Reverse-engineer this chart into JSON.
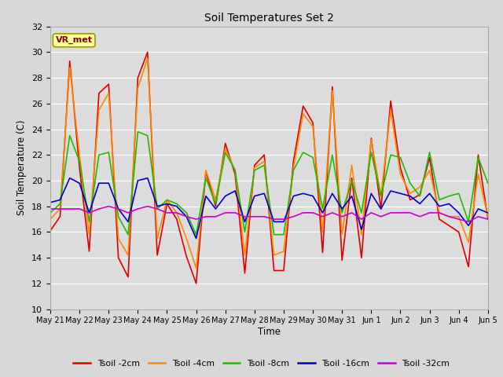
{
  "title": "Soil Temperatures Set 2",
  "xlabel": "Time",
  "ylabel": "Soil Temperature (C)",
  "ylim": [
    10,
    32
  ],
  "yticks": [
    10,
    12,
    14,
    16,
    18,
    20,
    22,
    24,
    26,
    28,
    30,
    32
  ],
  "annotation": "VR_met",
  "bg_color": "#dcdcdc",
  "fig_bg": "#d8d8d8",
  "colors": {
    "t2cm": "#dd0000",
    "t4cm": "#ff8800",
    "t8cm": "#22bb00",
    "t16cm": "#0000cc",
    "t32cm": "#cc00cc"
  },
  "series_labels": [
    "Tsoil -2cm",
    "Tsoil -4cm",
    "Tsoil -8cm",
    "Tsoil -16cm",
    "Tsoil -32cm"
  ],
  "x_labels": [
    "May 21",
    "May 22",
    "May 23",
    "May 24",
    "May 25",
    "May 26",
    "May 27",
    "May 28",
    "May 29",
    "May 30",
    "May 31",
    "Jun 1",
    "Jun 2",
    "Jun 3",
    "Jun 4",
    "Jun 5"
  ],
  "t2cm": [
    16.1,
    17.2,
    29.3,
    21.0,
    14.5,
    26.8,
    27.5,
    14.0,
    12.5,
    28.0,
    30.0,
    14.2,
    18.2,
    17.0,
    14.1,
    12.0,
    20.7,
    18.0,
    22.9,
    20.5,
    12.8,
    21.2,
    22.0,
    13.0,
    13.0,
    21.5,
    25.8,
    24.5,
    14.4,
    27.3,
    13.8,
    20.2,
    14.0,
    23.3,
    17.8,
    26.2,
    21.0,
    18.5,
    18.9,
    21.8,
    17.0,
    16.5,
    16.0,
    13.3,
    22.0,
    17.0
  ],
  "t4cm": [
    17.0,
    17.8,
    28.8,
    22.0,
    15.8,
    25.5,
    26.8,
    15.5,
    14.2,
    27.2,
    29.5,
    15.5,
    18.5,
    17.5,
    15.5,
    13.2,
    20.8,
    18.5,
    22.5,
    20.8,
    14.2,
    21.0,
    21.5,
    14.2,
    14.5,
    21.0,
    25.2,
    24.2,
    16.0,
    27.0,
    15.8,
    21.2,
    15.8,
    23.2,
    18.8,
    25.5,
    20.5,
    19.0,
    19.5,
    20.8,
    17.5,
    17.2,
    17.2,
    15.2,
    20.5,
    17.2
  ],
  "t8cm": [
    17.5,
    18.2,
    23.5,
    21.5,
    16.8,
    22.0,
    22.2,
    17.2,
    15.8,
    23.8,
    23.5,
    17.8,
    18.5,
    18.2,
    17.5,
    15.8,
    20.2,
    18.2,
    22.2,
    20.8,
    16.0,
    20.8,
    21.2,
    15.8,
    15.8,
    20.8,
    22.2,
    21.8,
    17.8,
    22.0,
    17.5,
    20.0,
    17.5,
    22.2,
    18.8,
    22.0,
    21.8,
    19.8,
    18.8,
    22.2,
    18.5,
    18.8,
    19.0,
    16.8,
    21.8,
    19.8
  ],
  "t16cm": [
    18.3,
    18.5,
    20.2,
    19.8,
    17.5,
    19.8,
    19.8,
    17.8,
    16.8,
    20.0,
    20.2,
    18.0,
    18.2,
    18.0,
    17.2,
    15.5,
    18.8,
    17.8,
    18.8,
    19.2,
    16.8,
    18.8,
    19.0,
    16.8,
    16.8,
    18.8,
    19.0,
    18.8,
    17.5,
    19.0,
    17.8,
    18.8,
    16.2,
    19.0,
    17.8,
    19.2,
    19.0,
    18.8,
    18.2,
    19.0,
    18.0,
    18.2,
    17.5,
    16.5,
    17.8,
    17.5
  ],
  "t32cm": [
    17.8,
    17.8,
    17.8,
    17.8,
    17.5,
    17.8,
    18.0,
    17.8,
    17.5,
    17.8,
    18.0,
    17.8,
    17.5,
    17.5,
    17.2,
    17.0,
    17.2,
    17.2,
    17.5,
    17.5,
    17.2,
    17.2,
    17.2,
    17.0,
    17.0,
    17.2,
    17.5,
    17.5,
    17.2,
    17.5,
    17.2,
    17.5,
    17.0,
    17.5,
    17.2,
    17.5,
    17.5,
    17.5,
    17.2,
    17.5,
    17.5,
    17.2,
    17.0,
    16.8,
    17.2,
    17.0
  ]
}
